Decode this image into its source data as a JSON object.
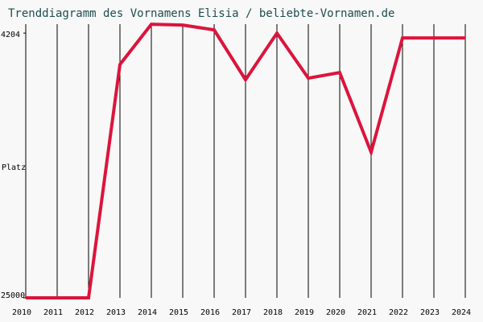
{
  "chart_data": {
    "type": "line",
    "title": "Trenddiagramm des Vornamens Elisia / beliebte-Vornamen.de",
    "y_label": "Platz",
    "x": [
      2010,
      2011,
      2012,
      2013,
      2014,
      2015,
      2016,
      2017,
      2018,
      2019,
      2020,
      2021,
      2022,
      2023,
      2024
    ],
    "series": [
      {
        "name": "Elisia",
        "color": "#dc143c",
        "values": [
          25000,
          25000,
          25000,
          6669,
          3509,
          3572,
          3951,
          7870,
          4204,
          7743,
          7301,
          13558,
          4583,
          4583,
          4583
        ]
      }
    ],
    "xlim": [
      2010,
      2024
    ],
    "xticks": [
      2010,
      2011,
      2012,
      2013,
      2014,
      2015,
      2016,
      2017,
      2018,
      2019,
      2020,
      2021,
      2022,
      2023,
      2024
    ],
    "ylim": [
      25000,
      3500
    ],
    "yticks": [
      4204,
      25000
    ],
    "grid": true
  }
}
